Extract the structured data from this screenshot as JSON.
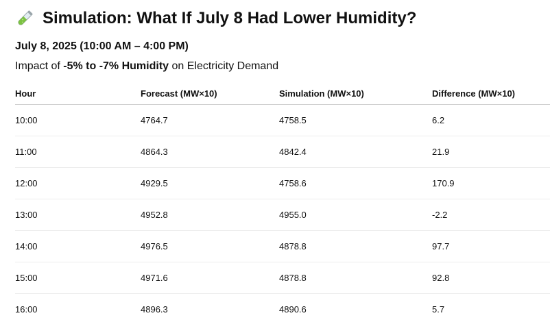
{
  "header": {
    "icon": "test-tube-icon",
    "title": "Simulation: What If July 8 Had Lower Humidity?",
    "date_range": "July 8, 2025 (10:00 AM – 4:00 PM)",
    "impact_prefix": "Impact of ",
    "impact_strong": "-5% to -7% Humidity",
    "impact_suffix": " on Electricity Demand"
  },
  "table": {
    "columns": [
      "Hour",
      "Forecast (MW×10)",
      "Simulation (MW×10)",
      "Difference (MW×10)"
    ],
    "rows": [
      [
        "10:00",
        "4764.7",
        "4758.5",
        "6.2"
      ],
      [
        "11:00",
        "4864.3",
        "4842.4",
        "21.9"
      ],
      [
        "12:00",
        "4929.5",
        "4758.6",
        "170.9"
      ],
      [
        "13:00",
        "4952.8",
        "4955.0",
        "-2.2"
      ],
      [
        "14:00",
        "4976.5",
        "4878.8",
        "97.7"
      ],
      [
        "15:00",
        "4971.6",
        "4878.8",
        "92.8"
      ],
      [
        "16:00",
        "4896.3",
        "4890.6",
        "5.7"
      ]
    ]
  },
  "colors": {
    "text": "#111111",
    "tube_liquid": "#7cc242",
    "tube_glass": "#cfd8dc"
  }
}
